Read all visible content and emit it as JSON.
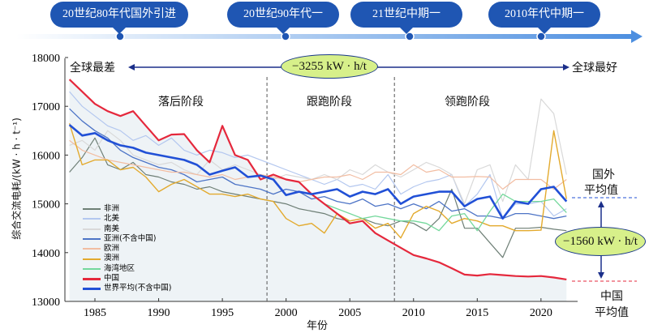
{
  "timeline": [
    "20世纪80年代国外引进",
    "20世纪90年代一",
    "21世纪中期一",
    "2010年代中期一"
  ],
  "annotations": {
    "worst": "全球最差",
    "best": "全球最好",
    "gap_total": "−3255 kW · h/t",
    "gap_china": "−1560 kW · h/t",
    "foreign_avg": [
      "国外",
      "平均值"
    ],
    "china_avg": [
      "中国",
      "平均值"
    ]
  },
  "phases": [
    "落后阶段",
    "跟跑阶段",
    "领跑阶段"
  ],
  "colors": {
    "accent": "#1f56b3"
  },
  "chart_data": {
    "type": "line",
    "title": "",
    "xlabel": "年份",
    "ylabel": "综合交流电耗/(kW · h · t⁻¹)",
    "xlim": [
      1982,
      2023
    ],
    "ylim": [
      13000,
      18000
    ],
    "xticks": [
      1985,
      1990,
      1995,
      2000,
      2005,
      2010,
      2015,
      2020
    ],
    "yticks": [
      13000,
      14000,
      15000,
      16000,
      17000,
      18000
    ],
    "phase_boundaries": [
      1998.5,
      2008.5
    ],
    "x": [
      1983,
      1984,
      1985,
      1986,
      1987,
      1988,
      1989,
      1990,
      1991,
      1992,
      1993,
      1994,
      1995,
      1996,
      1997,
      1998,
      1999,
      2000,
      2001,
      2002,
      2003,
      2004,
      2005,
      2006,
      2007,
      2008,
      2009,
      2010,
      2011,
      2012,
      2013,
      2014,
      2015,
      2016,
      2017,
      2018,
      2019,
      2020,
      2021,
      2022
    ],
    "series": [
      {
        "name": "非洲",
        "color": "#6e7f76",
        "width": 1.2,
        "values": [
          15650,
          15950,
          16350,
          15800,
          15700,
          15850,
          15600,
          15550,
          15450,
          15400,
          15300,
          15350,
          15250,
          15200,
          15150,
          15100,
          15050,
          15000,
          14900,
          14850,
          14800,
          14700,
          14650,
          14700,
          14600,
          14550,
          14650,
          14600,
          14450,
          14700,
          15300,
          14500,
          14500,
          14200,
          13900,
          14500,
          14500,
          14520,
          14480,
          14450
        ]
      },
      {
        "name": "北美",
        "color": "#b3c7ef",
        "width": 1.2,
        "values": [
          17300,
          17000,
          16800,
          16600,
          16500,
          16300,
          16400,
          16200,
          16350,
          16100,
          16000,
          16100,
          16050,
          15950,
          16000,
          15900,
          15800,
          15700,
          15600,
          15500,
          15400,
          15500,
          15350,
          15400,
          15300,
          15600,
          15200,
          15350,
          15450,
          15500,
          15600,
          14950,
          15200,
          15600,
          14700,
          15000,
          15000,
          15050,
          14750,
          14900
        ]
      },
      {
        "name": "南美",
        "color": "#d9d9d9",
        "width": 1.2,
        "values": [
          16200,
          16300,
          16100,
          16500,
          16300,
          16000,
          15900,
          15800,
          15850,
          15700,
          15600,
          15900,
          15700,
          15800,
          15700,
          15600,
          15500,
          15600,
          15550,
          15500,
          15600,
          15500,
          15700,
          15600,
          15800,
          15650,
          15550,
          15700,
          15850,
          15750,
          15600,
          15000,
          15700,
          15800,
          15050,
          15800,
          15500,
          17150,
          16850,
          15600
        ]
      },
      {
        "name": "亚洲(不含中国)",
        "color": "#4d74c6",
        "width": 1.3,
        "values": [
          16950,
          16700,
          16500,
          16350,
          16100,
          15950,
          15850,
          15750,
          15700,
          15600,
          15450,
          15500,
          15550,
          15400,
          15350,
          15300,
          15200,
          15300,
          15250,
          15100,
          15150,
          15050,
          15000,
          15100,
          14950,
          15000,
          14900,
          15000,
          14900,
          15050,
          14850,
          14900,
          14750,
          14750,
          14700,
          14800,
          14800,
          14750,
          14700,
          14750
        ]
      },
      {
        "name": "欧洲",
        "color": "#f2bda2",
        "width": 1.2,
        "values": [
          16300,
          16100,
          16000,
          15900,
          15850,
          15800,
          15750,
          15700,
          15650,
          15650,
          15600,
          15550,
          15600,
          15500,
          15550,
          15600,
          15550,
          15500,
          15450,
          15500,
          15550,
          15550,
          15600,
          15500,
          15650,
          15650,
          15600,
          15800,
          15650,
          15700,
          15550,
          15550,
          15560,
          15550,
          15300,
          15500,
          15500,
          15500,
          15300,
          15500
        ]
      },
      {
        "name": "澳洲",
        "color": "#e3aa2e",
        "width": 1.4,
        "values": [
          16650,
          15800,
          15900,
          15900,
          15700,
          15750,
          15550,
          15250,
          15400,
          15500,
          15350,
          15200,
          15200,
          15150,
          15200,
          15100,
          15050,
          14700,
          14550,
          14600,
          14400,
          14800,
          14650,
          14700,
          14500,
          14600,
          14300,
          14800,
          14950,
          14850,
          14600,
          14700,
          14650,
          14550,
          14550,
          14450,
          14450,
          14460,
          16500,
          15100
        ]
      },
      {
        "name": "海湾地区",
        "color": "#74d89c",
        "width": 1.3,
        "values": [
          null,
          null,
          null,
          null,
          null,
          null,
          null,
          null,
          null,
          null,
          null,
          null,
          null,
          null,
          null,
          null,
          null,
          null,
          null,
          null,
          15000,
          14900,
          14800,
          14700,
          14750,
          14700,
          14650,
          14650,
          14600,
          14450,
          14750,
          14800,
          14450,
          14850,
          15200,
          15050,
          15050,
          15050,
          15100,
          14820
        ]
      },
      {
        "name": "中国",
        "color": "#e5283c",
        "width": 2.2,
        "values": [
          17550,
          17300,
          17050,
          16900,
          16800,
          16900,
          16600,
          16300,
          16420,
          16430,
          16100,
          15850,
          16600,
          16000,
          15900,
          15500,
          15600,
          15500,
          15450,
          15200,
          15000,
          14800,
          14600,
          14650,
          14400,
          14250,
          14100,
          13950,
          13880,
          13800,
          13680,
          13550,
          13530,
          13560,
          13540,
          13520,
          13510,
          13520,
          13490,
          13450
        ]
      },
      {
        "name": "世界平均(不含中国)",
        "color": "#2150d6",
        "width": 2.6,
        "values": [
          16620,
          16400,
          16450,
          16300,
          16200,
          16150,
          16050,
          16000,
          15950,
          15900,
          15800,
          15600,
          15680,
          15750,
          15550,
          15580,
          15500,
          15180,
          15250,
          15200,
          15250,
          15300,
          15150,
          15250,
          15200,
          15300,
          15000,
          15150,
          15200,
          15250,
          15250,
          14950,
          15100,
          15150,
          14700,
          15050,
          15000,
          15300,
          15350,
          15050
        ]
      }
    ]
  }
}
